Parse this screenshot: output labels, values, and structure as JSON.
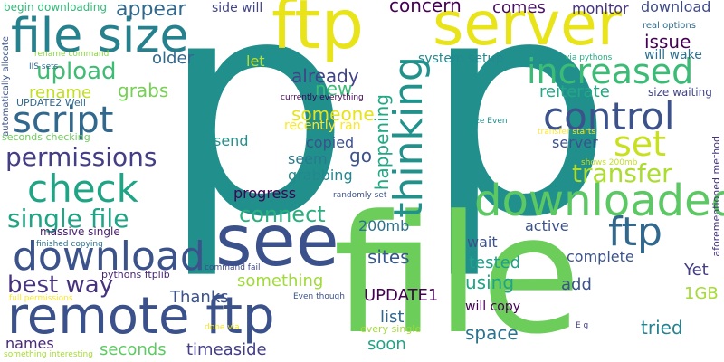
{
  "words": [
    {
      "text": "p",
      "color": "#21908d"
    },
    {
      "text": "p",
      "color": "#21908d"
    },
    {
      "text": "file",
      "color": "#6ccd5a"
    },
    {
      "text": "see",
      "color": "#3b518b"
    },
    {
      "text": "ftp",
      "color": "#e8e419"
    },
    {
      "text": "server",
      "color": "#e8e419"
    },
    {
      "text": "file size",
      "color": "#26818e"
    },
    {
      "text": "remote ftp",
      "color": "#3b518b"
    },
    {
      "text": "download",
      "color": "#3b528b"
    },
    {
      "text": "downloaded",
      "color": "#5cc863"
    },
    {
      "text": "script",
      "color": "#31688e"
    },
    {
      "text": "check",
      "color": "#20a486"
    },
    {
      "text": "control",
      "color": "#3b528b"
    },
    {
      "text": "increased",
      "color": "#3bbb75"
    },
    {
      "text": "thinking",
      "color": "#21918c"
    },
    {
      "text": "set",
      "color": "#c8e020"
    },
    {
      "text": "ftp",
      "color": "#31688e"
    },
    {
      "text": "permissions",
      "color": "#433e85"
    },
    {
      "text": "transfer",
      "color": "#addc30"
    },
    {
      "text": "single file",
      "color": "#20a486"
    },
    {
      "text": "connect",
      "color": "#2ab07f"
    },
    {
      "text": "best way",
      "color": "#46327e"
    },
    {
      "text": "upload",
      "color": "#3fbc73"
    },
    {
      "text": "appear",
      "color": "#31688e"
    },
    {
      "text": "concern",
      "color": "#440154"
    },
    {
      "text": "comes",
      "color": "#471063"
    },
    {
      "text": "monitor",
      "color": "#46337f"
    },
    {
      "text": "download",
      "color": "#3e4989"
    },
    {
      "text": "issue",
      "color": "#440154"
    },
    {
      "text": "will wake",
      "color": "#2d708e"
    },
    {
      "text": "real options",
      "color": "#2f6c8e"
    },
    {
      "text": "rename",
      "color": "#c2df23"
    },
    {
      "text": "grabs",
      "color": "#75d054"
    },
    {
      "text": "older",
      "color": "#31688e"
    },
    {
      "text": "let",
      "color": "#bddf26"
    },
    {
      "text": "already",
      "color": "#414487"
    },
    {
      "text": "new",
      "color": "#3bbb75"
    },
    {
      "text": "someone",
      "color": "#e5e419"
    },
    {
      "text": "copied",
      "color": "#3b528b"
    },
    {
      "text": "seem",
      "color": "#2a788e"
    },
    {
      "text": "go",
      "color": "#3b528b"
    },
    {
      "text": "grabbing",
      "color": "#24878e"
    },
    {
      "text": "happening",
      "color": "#22a884"
    },
    {
      "text": "reiterate",
      "color": "#22a884"
    },
    {
      "text": "server",
      "color": "#3b528b"
    },
    {
      "text": "system setup",
      "color": "#23898e"
    },
    {
      "text": "send",
      "color": "#21918c"
    },
    {
      "text": "progress",
      "color": "#440154"
    },
    {
      "text": "200mb",
      "color": "#2c728e"
    },
    {
      "text": "active",
      "color": "#3b528b"
    },
    {
      "text": "sites",
      "color": "#38598c"
    },
    {
      "text": "wait",
      "color": "#3b528b"
    },
    {
      "text": "tested",
      "color": "#1fa088"
    },
    {
      "text": "complete",
      "color": "#3b528b"
    },
    {
      "text": "Yet",
      "color": "#433e85"
    },
    {
      "text": "using",
      "color": "#20a386"
    },
    {
      "text": "add",
      "color": "#3b528b"
    },
    {
      "text": "1GB",
      "color": "#a5db36"
    },
    {
      "text": "something",
      "color": "#a0da39"
    },
    {
      "text": "Thanks",
      "color": "#3b528b"
    },
    {
      "text": "UPDATE1",
      "color": "#440154"
    },
    {
      "text": "list",
      "color": "#31688e"
    },
    {
      "text": "will copy",
      "color": "#440154"
    },
    {
      "text": "tried",
      "color": "#26828e"
    },
    {
      "text": "space",
      "color": "#2c728e"
    },
    {
      "text": "names",
      "color": "#482878"
    },
    {
      "text": "seconds",
      "color": "#5ec962"
    },
    {
      "text": "timeaside",
      "color": "#433e85"
    },
    {
      "text": "soon",
      "color": "#20a386"
    },
    {
      "text": "massive single",
      "color": "#481d6f"
    },
    {
      "text": "side will",
      "color": "#414487"
    },
    {
      "text": "begin downloading",
      "color": "#35b779"
    },
    {
      "text": "rename command",
      "color": "#8bd646"
    },
    {
      "text": "via pythons",
      "color": "#25ac82"
    },
    {
      "text": "size waiting",
      "color": "#404688"
    },
    {
      "text": "UPDATE2 Well",
      "color": "#31688e"
    },
    {
      "text": "IIS sets",
      "color": "#31688e"
    },
    {
      "text": "automatically allocate",
      "color": "#3b528b"
    },
    {
      "text": "seconds checking",
      "color": "#6ccd5a"
    },
    {
      "text": "currently everything",
      "color": "#440154"
    },
    {
      "text": "recently ran",
      "color": "#fde725"
    },
    {
      "text": "size Even",
      "color": "#21918c"
    },
    {
      "text": "transfer starts",
      "color": "#fde725"
    },
    {
      "text": "shows 200mb",
      "color": "#c2df23"
    },
    {
      "text": "aforementioned method",
      "color": "#46327e"
    },
    {
      "text": "randomly set",
      "color": "#3b528b"
    },
    {
      "text": "finished copying",
      "color": "#2c728e"
    },
    {
      "text": "command fail",
      "color": "#3e4989"
    },
    {
      "text": "pythons ftplib",
      "color": "#482475"
    },
    {
      "text": "full permissions",
      "color": "#fde725"
    },
    {
      "text": "Even though",
      "color": "#3b528b"
    },
    {
      "text": "done via",
      "color": "#f1e51d"
    },
    {
      "text": "every single",
      "color": "#a2da37"
    },
    {
      "text": "E g",
      "color": "#433e85"
    },
    {
      "text": "something interesting",
      "color": "#a8db34"
    }
  ]
}
